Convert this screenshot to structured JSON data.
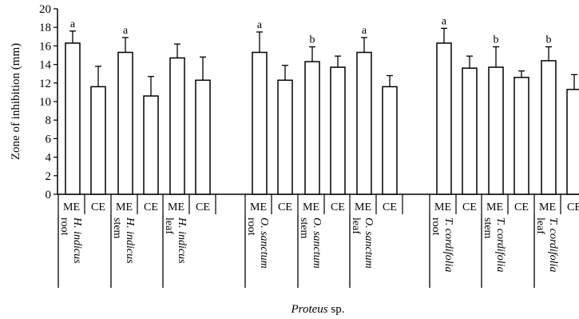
{
  "chart_data": {
    "type": "bar",
    "title": "",
    "ylabel": "Zone of inhibition (mm)",
    "xlabel_italic": "Proteus",
    "xlabel_rest": " sp.",
    "ylim": [
      0,
      20
    ],
    "yticks": [
      0,
      2,
      4,
      6,
      8,
      10,
      12,
      14,
      16,
      18,
      20
    ],
    "grid": false,
    "groups": [
      {
        "species": "H. indicus",
        "part": "root",
        "bars": [
          {
            "label": "ME",
            "value": 16.3,
            "error": 1.3,
            "sig": "a"
          },
          {
            "label": "CE",
            "value": 11.6,
            "error": 2.2,
            "sig": ""
          }
        ]
      },
      {
        "species": "H. indicus",
        "part": "stem",
        "bars": [
          {
            "label": "ME",
            "value": 15.3,
            "error": 1.6,
            "sig": "a"
          },
          {
            "label": "CE",
            "value": 10.6,
            "error": 2.1,
            "sig": ""
          }
        ]
      },
      {
        "species": "H. indicus",
        "part": "leaf",
        "bars": [
          {
            "label": "ME",
            "value": 14.7,
            "error": 1.5,
            "sig": ""
          },
          {
            "label": "CE",
            "value": 12.3,
            "error": 2.5,
            "sig": ""
          }
        ]
      },
      {
        "species": "O. sanctum",
        "part": "root",
        "bars": [
          {
            "label": "ME",
            "value": 15.3,
            "error": 2.2,
            "sig": "a"
          },
          {
            "label": "CE",
            "value": 12.3,
            "error": 1.6,
            "sig": ""
          }
        ]
      },
      {
        "species": "O. sanctum",
        "part": "stem",
        "bars": [
          {
            "label": "ME",
            "value": 14.3,
            "error": 1.6,
            "sig": "b"
          },
          {
            "label": "CE",
            "value": 13.7,
            "error": 1.2,
            "sig": ""
          }
        ]
      },
      {
        "species": "O. sanctum",
        "part": "leaf",
        "bars": [
          {
            "label": "ME",
            "value": 15.3,
            "error": 1.6,
            "sig": "a"
          },
          {
            "label": "CE",
            "value": 11.6,
            "error": 1.2,
            "sig": ""
          }
        ]
      },
      {
        "species": "T. cordifolia",
        "part": "root",
        "bars": [
          {
            "label": "ME",
            "value": 16.3,
            "error": 1.6,
            "sig": "a"
          },
          {
            "label": "CE",
            "value": 13.6,
            "error": 1.3,
            "sig": ""
          }
        ]
      },
      {
        "species": "T. cordifolia",
        "part": "stem",
        "bars": [
          {
            "label": "ME",
            "value": 13.7,
            "error": 2.2,
            "sig": "b"
          },
          {
            "label": "CE",
            "value": 12.6,
            "error": 0.7,
            "sig": ""
          }
        ]
      },
      {
        "species": "T. cordifolia",
        "part": "leaf",
        "bars": [
          {
            "label": "ME",
            "value": 14.4,
            "error": 1.5,
            "sig": "b"
          },
          {
            "label": "CE",
            "value": 11.3,
            "error": 1.6,
            "sig": ""
          }
        ]
      }
    ]
  }
}
